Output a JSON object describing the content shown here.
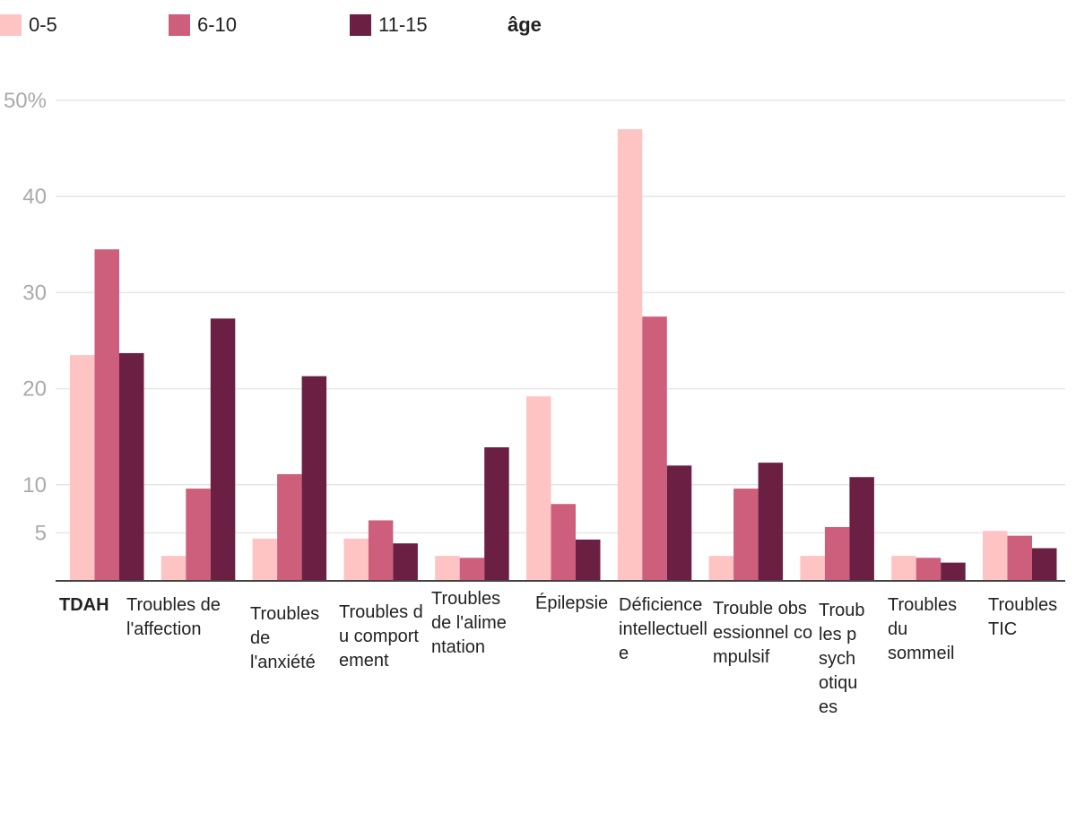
{
  "chart_data": {
    "type": "bar",
    "title": "",
    "xlabel": "",
    "ylabel": "",
    "ylim": [
      0,
      50
    ],
    "y_ticks": [
      5,
      10,
      20,
      30,
      40,
      50
    ],
    "y_tick_labels": [
      "5",
      "10",
      "20",
      "30",
      "40",
      "50%"
    ],
    "legend_title": "âge",
    "legend_position": "top-left",
    "categories": [
      "TDAH",
      "Troubles de l'affection",
      "Troubles de l'anxiété",
      "Troubles du comportement",
      "Troubles de l'alimentation",
      "Épilepsie",
      "Déficience intellectuelle",
      "Trouble obsessionnel compulsif",
      "Troubles psychotiques",
      "Troubles du sommeil",
      "Troubles TIC"
    ],
    "series": [
      {
        "name": "0-5",
        "color": "#fec4c3",
        "values": [
          23.5,
          2.6,
          4.4,
          4.4,
          2.6,
          19.2,
          47,
          2.6,
          2.6,
          2.6,
          5.2
        ]
      },
      {
        "name": "6-10",
        "color": "#cd5f7c",
        "values": [
          34.5,
          9.6,
          11.1,
          6.3,
          2.4,
          8,
          27.5,
          9.6,
          5.6,
          2.4,
          4.7
        ]
      },
      {
        "name": "11-15",
        "color": "#6a1f43",
        "values": [
          23.7,
          27.3,
          21.3,
          3.9,
          13.9,
          4.3,
          12,
          12.3,
          10.8,
          1.9,
          3.4
        ]
      }
    ]
  }
}
